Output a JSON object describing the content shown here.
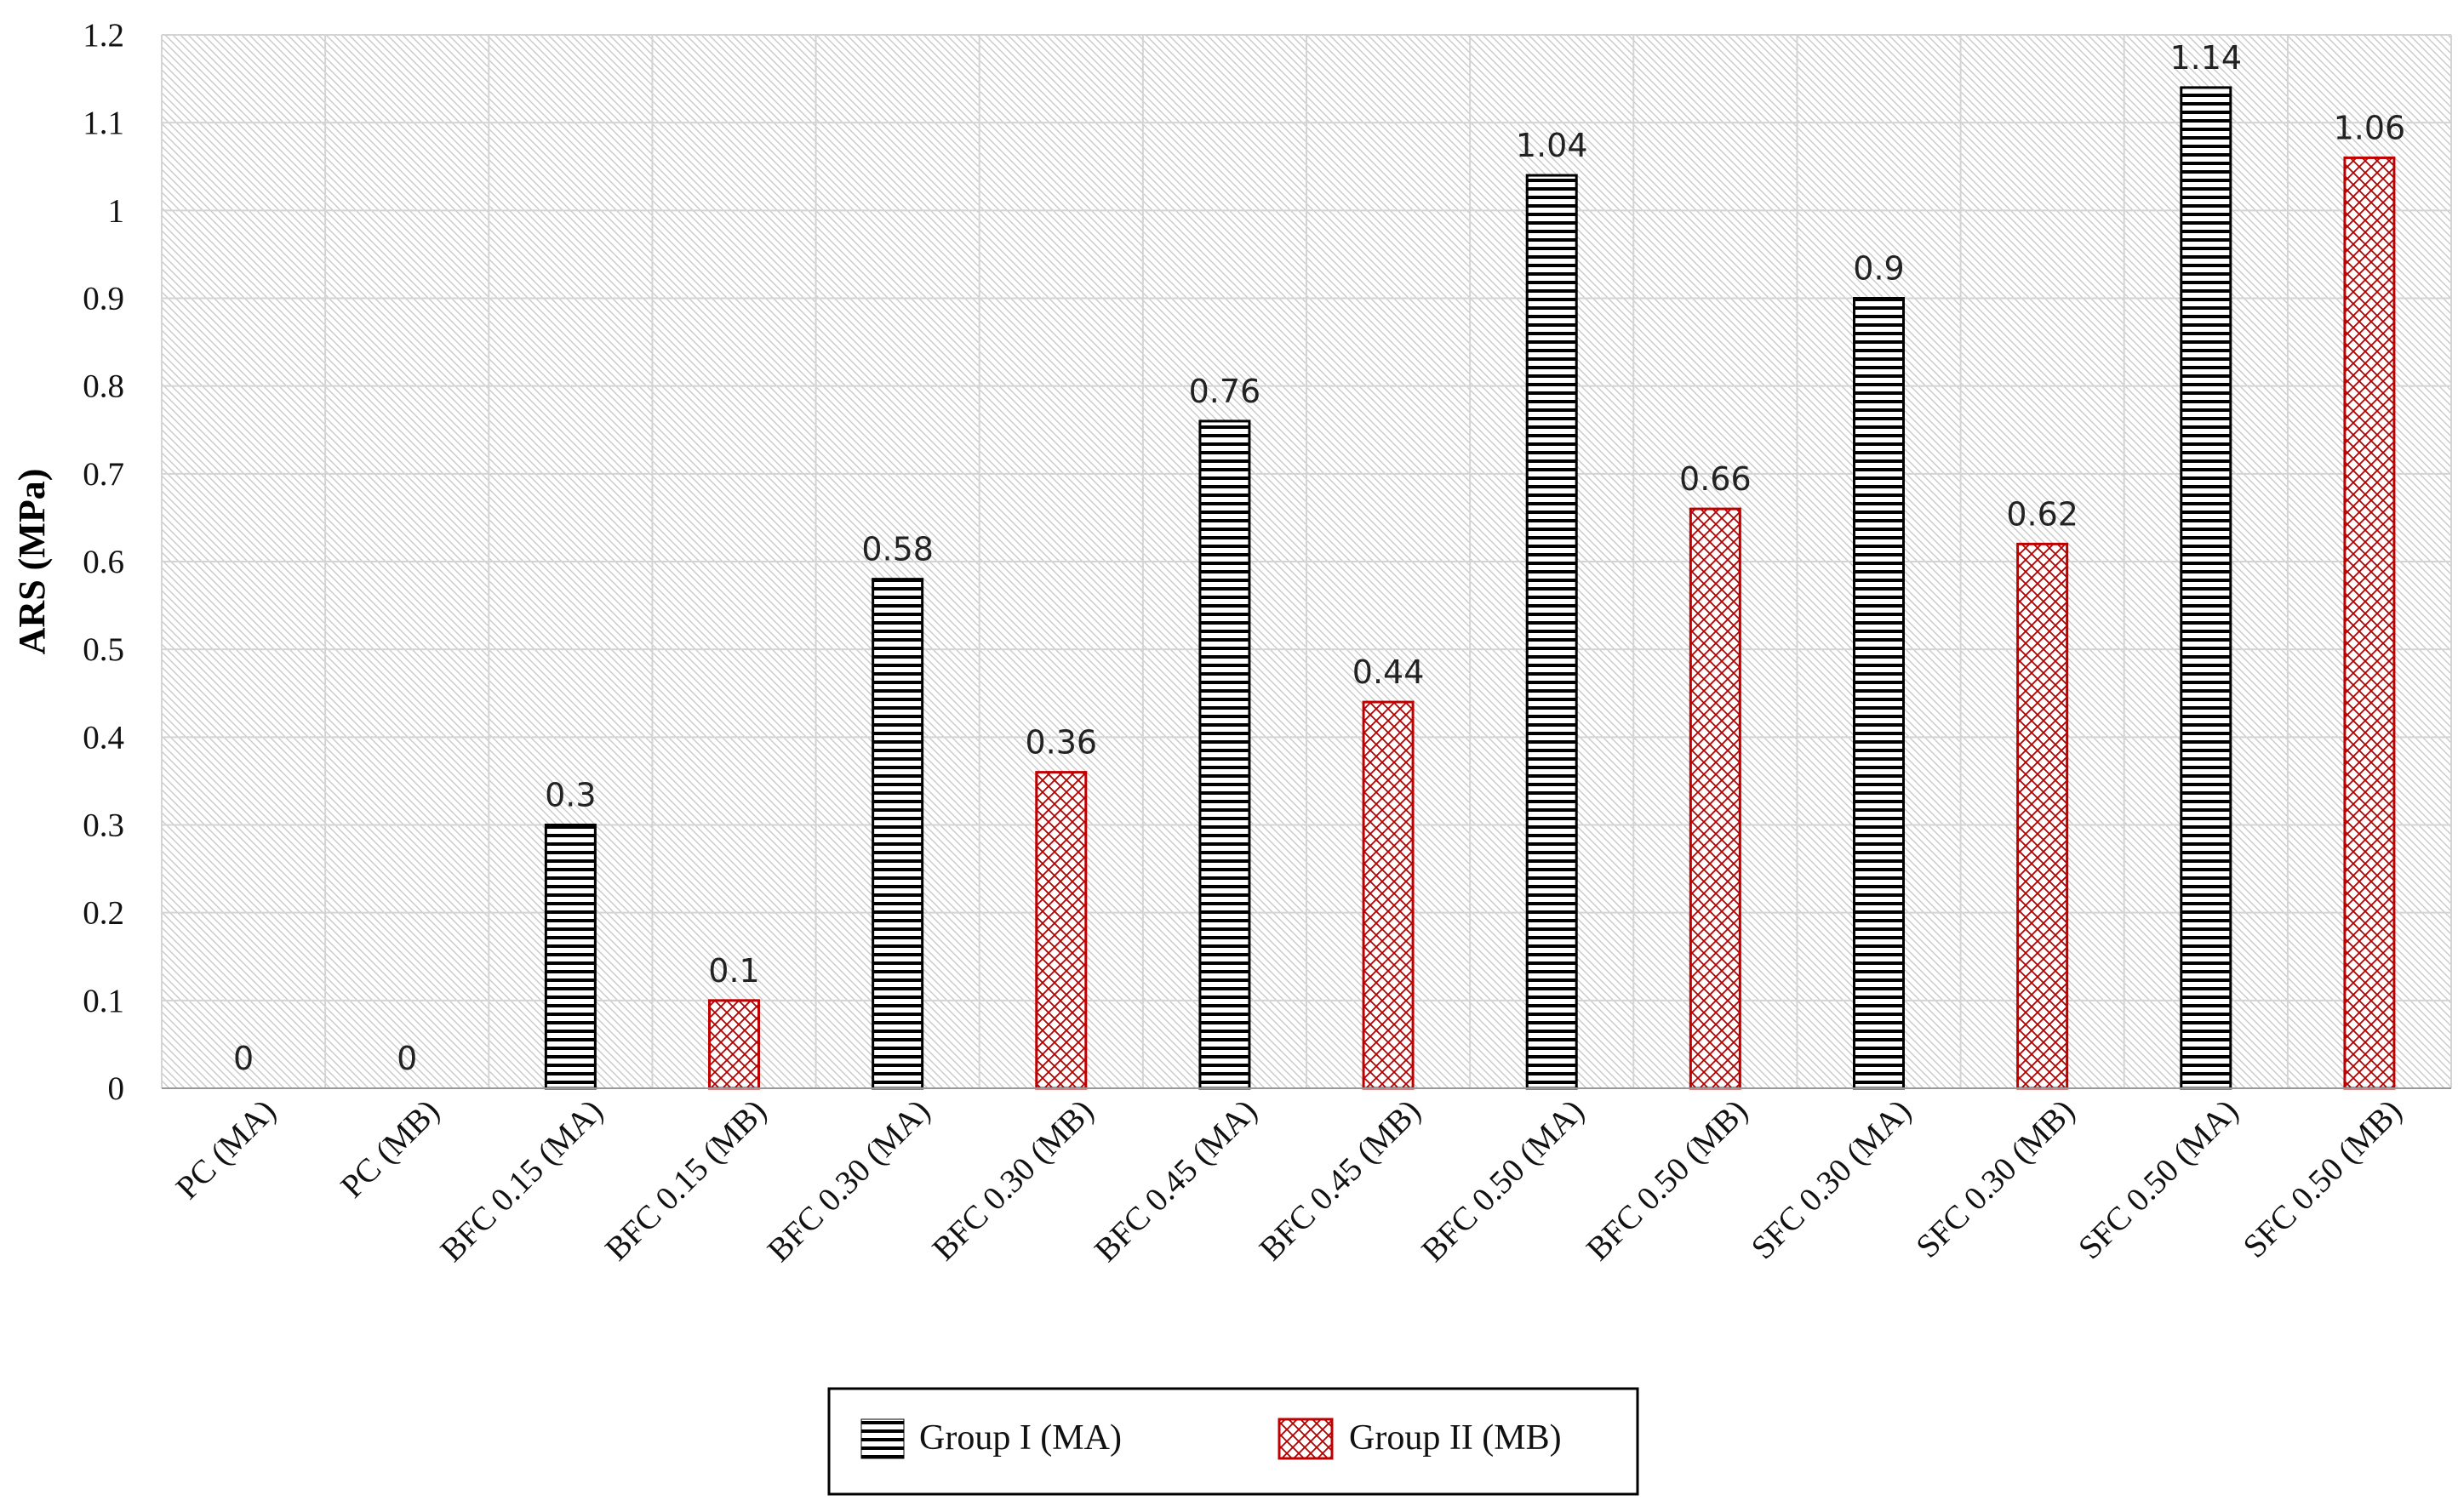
{
  "chart_data": {
    "type": "bar",
    "title": "",
    "xlabel": "",
    "ylabel": "ARS (MPa)",
    "ylim": [
      0,
      1.2
    ],
    "yticks": [
      "0",
      "0.1",
      "0.2",
      "0.3",
      "0.4",
      "0.5",
      "0.6",
      "0.7",
      "0.8",
      "0.9",
      "1",
      "1.1",
      "1.2"
    ],
    "grid": true,
    "legend_position": "bottom-center",
    "categories": [
      "PC (MA)",
      "PC (MB)",
      "BFC 0.15 (MA)",
      "BFC 0.15 (MB)",
      "BFC 0.30 (MA)",
      "BFC 0.30 (MB)",
      "BFC 0.45 (MA)",
      "BFC 0.45 (MB)",
      "BFC 0.50 (MA)",
      "BFC 0.50 (MB)",
      "SFC 0.30 (MA)",
      "SFC 0.30 (MB)",
      "SFC 0.50 (MA)",
      "SFC 0.50 (MB)"
    ],
    "values": [
      0,
      0,
      0.3,
      0.1,
      0.58,
      0.36,
      0.76,
      0.44,
      1.04,
      0.66,
      0.9,
      0.62,
      1.14,
      1.06
    ],
    "data_labels": [
      "0",
      "0",
      "0.3",
      "0.1",
      "0.58",
      "0.36",
      "0.76",
      "0.44",
      "1.04",
      "0.66",
      "0.9",
      "0.62",
      "1.14",
      "1.06"
    ],
    "bar_series": [
      "Group I (MA)",
      "Group II (MB)",
      "Group I (MA)",
      "Group II (MB)",
      "Group I (MA)",
      "Group II (MB)",
      "Group I (MA)",
      "Group II (MB)",
      "Group I (MA)",
      "Group II (MB)",
      "Group I (MA)",
      "Group II (MB)",
      "Group I (MA)",
      "Group II (MB)"
    ],
    "series": [
      {
        "name": "Group I (MA)",
        "pattern": "horizontal-stripes",
        "color": "#000000"
      },
      {
        "name": "Group II (MB)",
        "pattern": "crosshatch",
        "color": "#c00000"
      }
    ]
  }
}
